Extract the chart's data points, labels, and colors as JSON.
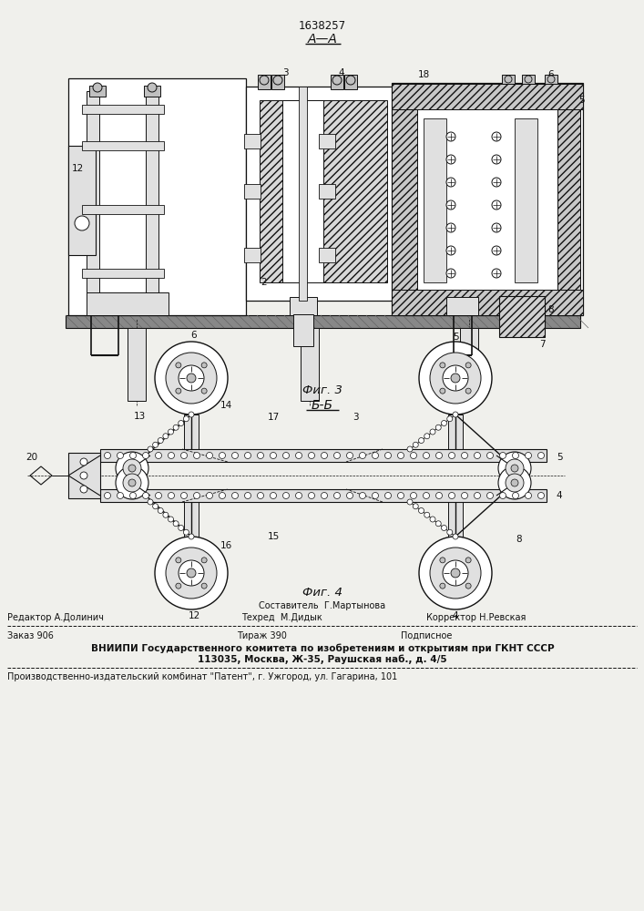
{
  "patent_number": "1638257",
  "fig3_label": "А—А",
  "fig4_label": "Б-Б",
  "fig3_caption": "Фиг. 3",
  "fig4_caption": "Фиг. 4",
  "footer_sestavitel": "Составитель  Г.Мартынова",
  "footer_redaktor": "Редактор А.Долинич",
  "footer_tehred": "Техред  М.Дидык",
  "footer_korrektor": "Корректор Н.Ревская",
  "footer_zakaz": "Заказ 906",
  "footer_tirazh": "Тираж 390",
  "footer_podpisnoe": "Подписное",
  "footer_vniipи": "ВНИИПИ Государственного комитета по изобретениям и открытиям при ГКНТ СССР",
  "footer_addr": "113035, Москва, Ж-35, Раушская наб., д. 4/5",
  "footer_patent": "Производственно-издательский комбинат \"Патент\", г. Ужгород, ул. Гагарина, 101",
  "bg_color": "#f0f0ec",
  "line_color": "#111111",
  "white": "#ffffff",
  "light_gray": "#e0e0e0",
  "mid_gray": "#c0c0c0",
  "dark_hatch": "#444444"
}
